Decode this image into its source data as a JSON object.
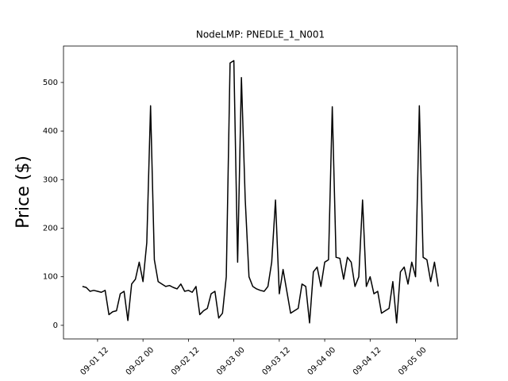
{
  "chart_data": {
    "type": "line",
    "title": "NodeLMP: PNEDLE_1_N001",
    "y_label": "Price ($)",
    "color": "#000000",
    "x": [
      "09-01 08",
      "09-01 09",
      "09-01 10",
      "09-01 11",
      "09-01 12",
      "09-01 13",
      "09-01 14",
      "09-01 15",
      "09-01 16",
      "09-01 17",
      "09-01 18",
      "09-01 19",
      "09-01 20",
      "09-01 21",
      "09-01 22",
      "09-01 23",
      "09-02 00",
      "09-02 01",
      "09-02 02",
      "09-02 03",
      "09-02 04",
      "09-02 05",
      "09-02 06",
      "09-02 07",
      "09-02 08",
      "09-02 09",
      "09-02 10",
      "09-02 11",
      "09-02 12",
      "09-02 13",
      "09-02 14",
      "09-02 15",
      "09-02 16",
      "09-02 17",
      "09-02 18",
      "09-02 19",
      "09-02 20",
      "09-02 21",
      "09-02 22",
      "09-02 23",
      "09-03 00",
      "09-03 01",
      "09-03 02",
      "09-03 03",
      "09-03 04",
      "09-03 05",
      "09-03 06",
      "09-03 07",
      "09-03 08",
      "09-03 09",
      "09-03 10",
      "09-03 11",
      "09-03 12",
      "09-03 13",
      "09-03 14",
      "09-03 15",
      "09-03 16",
      "09-03 17",
      "09-03 18",
      "09-03 19",
      "09-03 20",
      "09-03 21",
      "09-03 22",
      "09-03 23",
      "09-04 00",
      "09-04 01",
      "09-04 02",
      "09-04 03",
      "09-04 04",
      "09-04 05",
      "09-04 06",
      "09-04 07",
      "09-04 08",
      "09-04 09",
      "09-04 10",
      "09-04 11",
      "09-04 12",
      "09-04 13",
      "09-04 14",
      "09-04 15",
      "09-04 16",
      "09-04 17",
      "09-04 18",
      "09-04 19",
      "09-04 20",
      "09-04 21",
      "09-04 22",
      "09-04 23",
      "09-05 00",
      "09-05 01",
      "09-05 02",
      "09-05 03",
      "09-05 04",
      "09-05 05",
      "09-05 06"
    ],
    "values": [
      80,
      78,
      70,
      72,
      70,
      68,
      72,
      22,
      28,
      30,
      65,
      70,
      10,
      85,
      95,
      130,
      90,
      170,
      452,
      135,
      90,
      85,
      80,
      82,
      78,
      75,
      85,
      70,
      72,
      68,
      80,
      22,
      30,
      35,
      65,
      70,
      15,
      25,
      100,
      540,
      545,
      130,
      510,
      260,
      100,
      80,
      75,
      72,
      70,
      80,
      130,
      258,
      65,
      115,
      70,
      25,
      30,
      35,
      85,
      80,
      5,
      110,
      120,
      80,
      130,
      135,
      450,
      140,
      138,
      95,
      140,
      130,
      80,
      100,
      258,
      80,
      100,
      65,
      70,
      25,
      30,
      35,
      90,
      5,
      110,
      120,
      85,
      130,
      100,
      452,
      140,
      135,
      90,
      130,
      80
    ],
    "xlim": [
      "09-01 03",
      "09-05 11"
    ],
    "xticks": [
      "09-01 12",
      "09-02 00",
      "09-02 12",
      "09-03 00",
      "09-03 12",
      "09-04 00",
      "09-04 12",
      "09-05 00"
    ],
    "ylim": [
      -28,
      575
    ],
    "yticks": [
      0,
      100,
      200,
      300,
      400,
      500
    ]
  }
}
